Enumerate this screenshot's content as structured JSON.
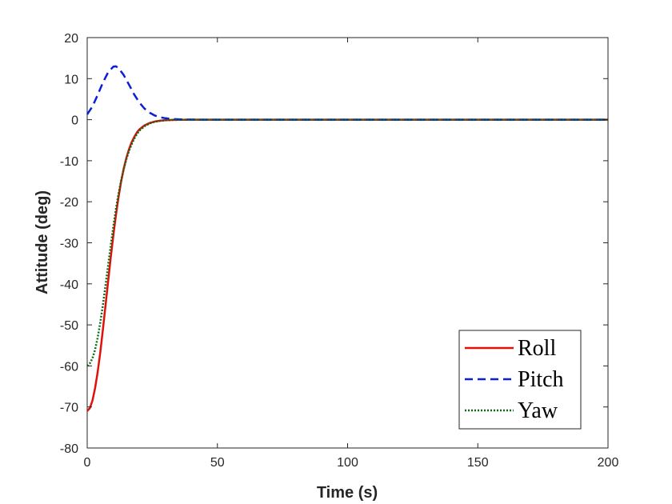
{
  "chart_data": {
    "type": "line",
    "title": "",
    "xlabel": "Time (s)",
    "ylabel": "Attitude (deg)",
    "xlim": [
      0,
      200
    ],
    "ylim": [
      -80,
      20
    ],
    "xticks": [
      0,
      50,
      100,
      150,
      200
    ],
    "yticks": [
      20,
      10,
      0,
      -10,
      -20,
      -30,
      -40,
      -50,
      -60,
      -70,
      -80
    ],
    "xtick_labels": [
      "0",
      "50",
      "100",
      "150",
      "200"
    ],
    "ytick_labels": [
      "20",
      "10",
      "0",
      "-10",
      "-20",
      "-30",
      "-40",
      "-50",
      "-60",
      "-70",
      "-80"
    ],
    "grid": false,
    "legend_position": "bottom-right",
    "series": [
      {
        "name": "Roll",
        "style": "solid",
        "color": "#e0100d",
        "x": [
          0,
          1,
          2,
          3,
          4,
          5,
          6,
          7,
          8,
          9,
          10,
          11,
          12,
          13,
          14,
          15,
          16,
          17,
          18,
          19,
          20,
          22,
          24,
          26,
          28,
          30,
          33,
          36,
          40,
          45,
          50,
          60,
          80,
          100,
          150,
          200
        ],
        "y": [
          -71,
          -70.3,
          -68.5,
          -65.5,
          -61.6,
          -56.8,
          -51.3,
          -45.5,
          -39.6,
          -33.8,
          -28.4,
          -23.4,
          -19.0,
          -15.2,
          -12.0,
          -9.4,
          -7.3,
          -5.6,
          -4.3,
          -3.2,
          -2.4,
          -1.4,
          -0.8,
          -0.45,
          -0.25,
          -0.13,
          -0.05,
          -0.02,
          0,
          0,
          0,
          0,
          0,
          0,
          0,
          0
        ]
      },
      {
        "name": "Pitch",
        "style": "dashed",
        "color": "#0b1fd6",
        "x": [
          0,
          2,
          4,
          6,
          8,
          10,
          11,
          12,
          14,
          16,
          18,
          20,
          22,
          24,
          26,
          28,
          30,
          33,
          36,
          40,
          45,
          50,
          60,
          80,
          100,
          150,
          200
        ],
        "y": [
          1.3,
          3.2,
          6.0,
          9.0,
          11.5,
          12.9,
          13.0,
          12.6,
          10.9,
          8.6,
          6.2,
          4.2,
          2.7,
          1.7,
          1.0,
          0.6,
          0.35,
          0.15,
          0.07,
          0.02,
          0,
          0,
          0,
          0,
          0,
          0,
          0
        ]
      },
      {
        "name": "Yaw",
        "style": "dotted",
        "color": "#0a6b12",
        "x": [
          0,
          1,
          2,
          3,
          4,
          5,
          6,
          7,
          8,
          9,
          10,
          11,
          12,
          13,
          14,
          15,
          16,
          17,
          18,
          19,
          20,
          22,
          24,
          26,
          28,
          30,
          33,
          36,
          40,
          45,
          50,
          60,
          80,
          100,
          150,
          200
        ],
        "y": [
          -60,
          -59.4,
          -58.2,
          -56.1,
          -53.2,
          -49.5,
          -45.3,
          -40.6,
          -35.7,
          -30.8,
          -26.2,
          -21.9,
          -18.2,
          -14.9,
          -12.1,
          -9.7,
          -7.7,
          -6.1,
          -4.7,
          -3.6,
          -2.7,
          -1.6,
          -0.9,
          -0.5,
          -0.28,
          -0.15,
          -0.06,
          -0.02,
          0,
          0,
          0,
          0,
          0,
          0,
          0,
          0
        ]
      }
    ]
  }
}
